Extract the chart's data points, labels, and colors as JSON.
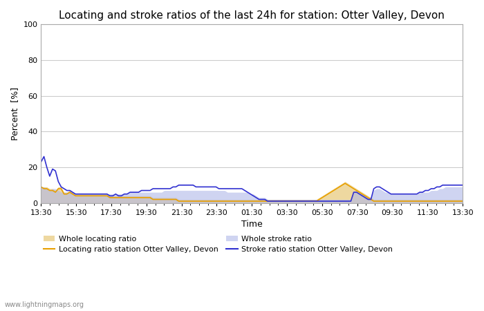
{
  "title": "Locating and stroke ratios of the last 24h for station: Otter Valley, Devon",
  "xlabel": "Time",
  "ylabel": "Percent  [%]",
  "ylim": [
    0,
    100
  ],
  "yticks": [
    0,
    20,
    40,
    60,
    80,
    100
  ],
  "x_tick_labels": [
    "13:30",
    "15:30",
    "17:30",
    "19:30",
    "21:30",
    "23:30",
    "01:30",
    "03:30",
    "05:30",
    "07:30",
    "09:30",
    "11:30",
    "13:30"
  ],
  "watermark": "www.lightningmaps.org",
  "color_loc_line": "#e8a000",
  "color_loc_fill": "#e8c878",
  "color_str_line": "#3030d0",
  "color_str_fill": "#b0b8e8",
  "background_color": "#ffffff",
  "grid_color": "#cccccc",
  "title_fontsize": 11,
  "axis_fontsize": 9,
  "tick_fontsize": 8,
  "locating_ratio_line": [
    9,
    8,
    8,
    7,
    7,
    6,
    8,
    8,
    5,
    5,
    6,
    5,
    4,
    4,
    4,
    4,
    4,
    4,
    4,
    4,
    4,
    4,
    4,
    4,
    3,
    3,
    3,
    3,
    3,
    3,
    3,
    3,
    3,
    3,
    3,
    3,
    3,
    3,
    3,
    2,
    2,
    2,
    2,
    2,
    2,
    2,
    2,
    2,
    1,
    1,
    1,
    1,
    1,
    1,
    1,
    1,
    1,
    1,
    1,
    1,
    1,
    1,
    1,
    1,
    1,
    1,
    1,
    1,
    1,
    1,
    1,
    1,
    1,
    1,
    1,
    1,
    1,
    1,
    1,
    1,
    1,
    1,
    1,
    1,
    1,
    1,
    1,
    1,
    1,
    1,
    1,
    1,
    1,
    1,
    1,
    1,
    1,
    2,
    3,
    4,
    5,
    6,
    7,
    8,
    9,
    10,
    11,
    10,
    9,
    8,
    7,
    6,
    5,
    4,
    3,
    2,
    1,
    1,
    1,
    1,
    1,
    1,
    1,
    1,
    1,
    1,
    1,
    1,
    1,
    1,
    1,
    1,
    1,
    1,
    1,
    1,
    1,
    1,
    1,
    1,
    1,
    1,
    1,
    1,
    1,
    1,
    1,
    1
  ],
  "locating_ratio_fill_upper": [
    9,
    9,
    9,
    8,
    8,
    7,
    9,
    9,
    6,
    6,
    7,
    6,
    5,
    5,
    5,
    5,
    5,
    5,
    5,
    5,
    5,
    5,
    5,
    5,
    4,
    4,
    4,
    4,
    4,
    4,
    4,
    4,
    4,
    4,
    4,
    4,
    4,
    4,
    4,
    3,
    3,
    3,
    3,
    3,
    3,
    3,
    3,
    3,
    2,
    2,
    2,
    2,
    2,
    2,
    2,
    2,
    2,
    2,
    2,
    2,
    2,
    2,
    2,
    2,
    2,
    2,
    2,
    2,
    2,
    2,
    2,
    2,
    2,
    2,
    2,
    2,
    2,
    2,
    2,
    2,
    2,
    2,
    2,
    2,
    2,
    2,
    2,
    2,
    2,
    2,
    2,
    2,
    2,
    2,
    2,
    2,
    2,
    3,
    4,
    5,
    6,
    7,
    8,
    9,
    10,
    11,
    12,
    11,
    10,
    9,
    8,
    7,
    6,
    5,
    4,
    3,
    2,
    2,
    2,
    2,
    2,
    2,
    2,
    2,
    2,
    2,
    2,
    2,
    2,
    2,
    2,
    2,
    2,
    2,
    2,
    2,
    2,
    2,
    2,
    2,
    2,
    2,
    2,
    2,
    2,
    2,
    2,
    2
  ],
  "locating_ratio_fill_lower": [
    0,
    0,
    0,
    0,
    0,
    0,
    0,
    0,
    0,
    0,
    0,
    0,
    0,
    0,
    0,
    0,
    0,
    0,
    0,
    0,
    0,
    0,
    0,
    0,
    0,
    0,
    0,
    0,
    0,
    0,
    0,
    0,
    0,
    0,
    0,
    0,
    0,
    0,
    0,
    0,
    0,
    0,
    0,
    0,
    0,
    0,
    0,
    0,
    0,
    0,
    0,
    0,
    0,
    0,
    0,
    0,
    0,
    0,
    0,
    0,
    0,
    0,
    0,
    0,
    0,
    0,
    0,
    0,
    0,
    0,
    0,
    0,
    0,
    0,
    0,
    0,
    0,
    0,
    0,
    0,
    0,
    0,
    0,
    0,
    0,
    0,
    0,
    0,
    0,
    0,
    0,
    0,
    0,
    0,
    0,
    0,
    0,
    0,
    0,
    0,
    0,
    0,
    0,
    0,
    0,
    0,
    0,
    0,
    0,
    0,
    0,
    0,
    0,
    0,
    0,
    0,
    0,
    0,
    0,
    0,
    0,
    0,
    0,
    0,
    0,
    0,
    0,
    0,
    0,
    0,
    0,
    0,
    0,
    0,
    0,
    0,
    0,
    0,
    0,
    0,
    0,
    0,
    0,
    0,
    0,
    0,
    0,
    0
  ],
  "stroke_ratio_line": [
    23,
    26,
    20,
    15,
    19,
    18,
    12,
    9,
    8,
    7,
    7,
    6,
    5,
    5,
    5,
    5,
    5,
    5,
    5,
    5,
    5,
    5,
    5,
    5,
    4,
    4,
    5,
    4,
    4,
    5,
    5,
    6,
    6,
    6,
    6,
    7,
    7,
    7,
    7,
    8,
    8,
    8,
    8,
    8,
    8,
    8,
    9,
    9,
    10,
    10,
    10,
    10,
    10,
    10,
    9,
    9,
    9,
    9,
    9,
    9,
    9,
    9,
    8,
    8,
    8,
    8,
    8,
    8,
    8,
    8,
    8,
    7,
    6,
    5,
    4,
    3,
    2,
    2,
    2,
    1,
    1,
    1,
    1,
    1,
    1,
    1,
    1,
    1,
    1,
    1,
    1,
    1,
    1,
    1,
    1,
    1,
    1,
    1,
    1,
    1,
    1,
    1,
    1,
    1,
    1,
    1,
    1,
    1,
    1,
    6,
    6,
    5,
    4,
    3,
    2,
    2,
    8,
    9,
    9,
    8,
    7,
    6,
    5,
    5,
    5,
    5,
    5,
    5,
    5,
    5,
    5,
    5,
    6,
    6,
    7,
    7,
    8,
    8,
    9,
    9,
    10,
    10,
    10,
    10,
    10,
    10,
    10,
    10
  ],
  "stroke_ratio_fill_upper": [
    9,
    9,
    8,
    7,
    8,
    8,
    7,
    6,
    6,
    6,
    6,
    6,
    5,
    5,
    5,
    5,
    5,
    5,
    5,
    5,
    5,
    5,
    5,
    5,
    5,
    5,
    5,
    5,
    5,
    5,
    5,
    6,
    6,
    6,
    6,
    6,
    6,
    6,
    6,
    6,
    6,
    6,
    6,
    7,
    7,
    7,
    7,
    7,
    7,
    7,
    7,
    7,
    7,
    7,
    7,
    7,
    7,
    7,
    7,
    7,
    7,
    7,
    7,
    7,
    7,
    6,
    6,
    6,
    6,
    6,
    6,
    6,
    6,
    5,
    5,
    4,
    3,
    3,
    3,
    2,
    2,
    2,
    2,
    2,
    2,
    2,
    2,
    2,
    2,
    2,
    2,
    2,
    2,
    2,
    2,
    2,
    2,
    2,
    2,
    2,
    2,
    2,
    2,
    2,
    2,
    2,
    2,
    2,
    2,
    6,
    6,
    5,
    5,
    4,
    3,
    3,
    7,
    8,
    8,
    7,
    6,
    6,
    5,
    5,
    5,
    5,
    5,
    5,
    5,
    5,
    5,
    5,
    6,
    6,
    6,
    6,
    7,
    7,
    7,
    8,
    8,
    9,
    9,
    9,
    9,
    9,
    9,
    9
  ],
  "stroke_ratio_fill_lower": [
    0,
    0,
    0,
    0,
    0,
    0,
    0,
    0,
    0,
    0,
    0,
    0,
    0,
    0,
    0,
    0,
    0,
    0,
    0,
    0,
    0,
    0,
    0,
    0,
    0,
    0,
    0,
    0,
    0,
    0,
    0,
    0,
    0,
    0,
    0,
    0,
    0,
    0,
    0,
    0,
    0,
    0,
    0,
    0,
    0,
    0,
    0,
    0,
    0,
    0,
    0,
    0,
    0,
    0,
    0,
    0,
    0,
    0,
    0,
    0,
    0,
    0,
    0,
    0,
    0,
    0,
    0,
    0,
    0,
    0,
    0,
    0,
    0,
    0,
    0,
    0,
    0,
    0,
    0,
    0,
    0,
    0,
    0,
    0,
    0,
    0,
    0,
    0,
    0,
    0,
    0,
    0,
    0,
    0,
    0,
    0,
    0,
    0,
    0,
    0,
    0,
    0,
    0,
    0,
    0,
    0,
    0,
    0,
    0,
    0,
    0,
    0,
    0,
    0,
    0,
    0,
    0,
    0,
    0,
    0,
    0,
    0,
    0,
    0,
    0,
    0,
    0,
    0,
    0,
    0,
    0,
    0,
    0,
    0,
    0,
    0,
    0,
    0,
    0,
    0,
    0,
    0,
    0,
    0,
    0,
    0,
    0,
    0
  ]
}
